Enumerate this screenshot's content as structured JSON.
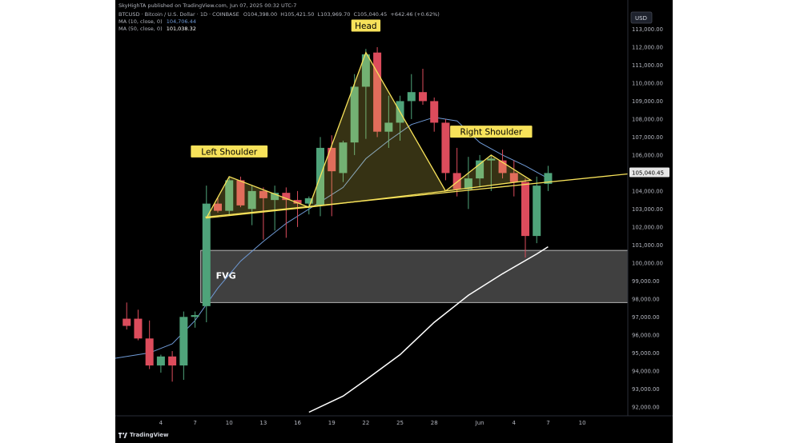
{
  "header": {
    "publisher": "SkyHighTA published on TradingView.com, Jun 07, 2025 00:32 UTC-7",
    "symbol": "BTCUSD · Bitcoin / U.S. Dollar · 1D · COINBASE",
    "ohlc": "O104,398.00  H105,421.50  L103,969.70  C105,040.45  +642.46 (+0.62%)",
    "ma10_label": "MA (10, close, 0)",
    "ma10_value": "104,706.44",
    "ma50_label": "MA (50, close, 0)",
    "ma50_value": "101,038.32"
  },
  "footer": {
    "brand": "TradingView"
  },
  "colors": {
    "up": "#4fa37a",
    "down": "#dc4c5c",
    "ma10": "#6f9ad6",
    "ma50": "#ffffff",
    "pattern": "#f7e25a",
    "label_bg": "#f7e25a",
    "fvg": "#555555"
  },
  "chart_data": {
    "type": "candlestick",
    "currency": "USD",
    "ylim": [
      91500,
      114000
    ],
    "y_ticks": [
      "92,000.00",
      "93,000.00",
      "94,000.00",
      "95,000.00",
      "96,000.00",
      "97,000.00",
      "98,000.00",
      "99,000.00",
      "100,000.00",
      "101,000.00",
      "102,000.00",
      "103,000.00",
      "104,000.00",
      "105,000.00",
      "106,000.00",
      "107,000.00",
      "108,000.00",
      "109,000.00",
      "110,000.00",
      "111,000.00",
      "112,000.00",
      "113,000.00"
    ],
    "x_ticks": [
      {
        "day": 4,
        "label": "4"
      },
      {
        "day": 7,
        "label": "7"
      },
      {
        "day": 10,
        "label": "10"
      },
      {
        "day": 13,
        "label": "13"
      },
      {
        "day": 16,
        "label": "16"
      },
      {
        "day": 19,
        "label": "19"
      },
      {
        "day": 22,
        "label": "22"
      },
      {
        "day": 25,
        "label": "25"
      },
      {
        "day": 28,
        "label": "28"
      },
      {
        "day": 32,
        "label": "Jun"
      },
      {
        "day": 35,
        "label": "4"
      },
      {
        "day": 38,
        "label": "7"
      },
      {
        "day": 41,
        "label": "10"
      }
    ],
    "candles": [
      {
        "d": 1,
        "o": 96900,
        "h": 97800,
        "l": 96300,
        "c": 96500
      },
      {
        "d": 2,
        "o": 96900,
        "h": 97400,
        "l": 95700,
        "c": 95800
      },
      {
        "d": 3,
        "o": 95800,
        "h": 96800,
        "l": 94100,
        "c": 94300
      },
      {
        "d": 4,
        "o": 94300,
        "h": 94900,
        "l": 93900,
        "c": 94800
      },
      {
        "d": 5,
        "o": 94800,
        "h": 95100,
        "l": 93400,
        "c": 94300
      },
      {
        "d": 6,
        "o": 94300,
        "h": 97300,
        "l": 93500,
        "c": 97000
      },
      {
        "d": 7,
        "o": 97000,
        "h": 97300,
        "l": 96400,
        "c": 97100
      },
      {
        "d": 8,
        "o": 97600,
        "h": 104300,
        "l": 96700,
        "c": 103300
      },
      {
        "d": 9,
        "o": 103300,
        "h": 103600,
        "l": 102800,
        "c": 102900
      },
      {
        "d": 10,
        "o": 102900,
        "h": 104800,
        "l": 102700,
        "c": 104600
      },
      {
        "d": 11,
        "o": 104600,
        "h": 104800,
        "l": 103100,
        "c": 103200
      },
      {
        "d": 12,
        "o": 103000,
        "h": 104300,
        "l": 102100,
        "c": 104000
      },
      {
        "d": 13,
        "o": 104000,
        "h": 104200,
        "l": 101300,
        "c": 103600
      },
      {
        "d": 14,
        "o": 103500,
        "h": 104300,
        "l": 101800,
        "c": 103900
      },
      {
        "d": 15,
        "o": 103900,
        "h": 104200,
        "l": 101400,
        "c": 103500
      },
      {
        "d": 16,
        "o": 103500,
        "h": 104000,
        "l": 102000,
        "c": 103300
      },
      {
        "d": 17,
        "o": 103300,
        "h": 103700,
        "l": 102700,
        "c": 103600
      },
      {
        "d": 18,
        "o": 103200,
        "h": 107000,
        "l": 102600,
        "c": 106400
      },
      {
        "d": 19,
        "o": 106400,
        "h": 107100,
        "l": 102600,
        "c": 105100
      },
      {
        "d": 20,
        "o": 105000,
        "h": 106800,
        "l": 104500,
        "c": 106700
      },
      {
        "d": 21,
        "o": 106700,
        "h": 110500,
        "l": 106000,
        "c": 109800
      },
      {
        "d": 22,
        "o": 109800,
        "h": 111900,
        "l": 106900,
        "c": 111600
      },
      {
        "d": 23,
        "o": 111700,
        "h": 112000,
        "l": 107000,
        "c": 107300
      },
      {
        "d": 24,
        "o": 107300,
        "h": 109300,
        "l": 106400,
        "c": 107800
      },
      {
        "d": 25,
        "o": 107800,
        "h": 109300,
        "l": 106800,
        "c": 109000
      },
      {
        "d": 26,
        "o": 109000,
        "h": 110500,
        "l": 108000,
        "c": 109500
      },
      {
        "d": 27,
        "o": 109500,
        "h": 110800,
        "l": 108800,
        "c": 109000
      },
      {
        "d": 28,
        "o": 109000,
        "h": 109200,
        "l": 107300,
        "c": 107800
      },
      {
        "d": 29,
        "o": 107800,
        "h": 108000,
        "l": 104600,
        "c": 105000
      },
      {
        "d": 30,
        "o": 105000,
        "h": 106400,
        "l": 103700,
        "c": 104100
      },
      {
        "d": 31,
        "o": 104100,
        "h": 105900,
        "l": 103000,
        "c": 104700
      },
      {
        "d": 32,
        "o": 104700,
        "h": 106000,
        "l": 104200,
        "c": 105700
      },
      {
        "d": 33,
        "o": 105700,
        "h": 106000,
        "l": 104000,
        "c": 105800
      },
      {
        "d": 34,
        "o": 105700,
        "h": 106300,
        "l": 104700,
        "c": 105000
      },
      {
        "d": 35,
        "o": 105000,
        "h": 105700,
        "l": 103700,
        "c": 104500
      },
      {
        "d": 36,
        "o": 104500,
        "h": 104700,
        "l": 100300,
        "c": 101500
      },
      {
        "d": 37,
        "o": 101500,
        "h": 104800,
        "l": 101100,
        "c": 104300
      },
      {
        "d": 38,
        "o": 104400,
        "h": 105400,
        "l": 104000,
        "c": 105000
      }
    ],
    "ma10": [
      [
        0,
        94700
      ],
      [
        3,
        95000
      ],
      [
        5,
        95500
      ],
      [
        7,
        96800
      ],
      [
        9,
        98600
      ],
      [
        11,
        100100
      ],
      [
        13,
        101200
      ],
      [
        15,
        102200
      ],
      [
        17,
        103000
      ],
      [
        18,
        103400
      ],
      [
        20,
        104200
      ],
      [
        22,
        105800
      ],
      [
        24,
        106800
      ],
      [
        26,
        107700
      ],
      [
        28,
        108100
      ],
      [
        30,
        107900
      ],
      [
        32,
        106700
      ],
      [
        34,
        106000
      ],
      [
        36,
        105400
      ],
      [
        38,
        104700
      ]
    ],
    "ma50": [
      [
        17,
        91700
      ],
      [
        20,
        92600
      ],
      [
        22,
        93500
      ],
      [
        25,
        94900
      ],
      [
        28,
        96700
      ],
      [
        31,
        98200
      ],
      [
        34,
        99400
      ],
      [
        37,
        100500
      ],
      [
        38,
        100900
      ]
    ],
    "fvg": {
      "from_day": 7.5,
      "to_day": 45,
      "low": 97800,
      "high": 100700,
      "label": "FVG"
    },
    "neckline": [
      [
        7.9,
        102550
      ],
      [
        45,
        104950
      ]
    ],
    "pattern_lines": [
      {
        "name": "left-shoulder",
        "points": [
          [
            8,
            102500
          ],
          [
            10,
            104800
          ],
          [
            17,
            103100
          ]
        ]
      },
      {
        "name": "head",
        "points": [
          [
            17,
            103100
          ],
          [
            22,
            111700
          ],
          [
            29,
            104000
          ]
        ]
      },
      {
        "name": "right-shoulder",
        "points": [
          [
            29,
            104000
          ],
          [
            33,
            106000
          ],
          [
            36.5,
            104600
          ]
        ]
      }
    ],
    "annotations": [
      {
        "text": "Left Shoulder",
        "day": 10,
        "price": 106200
      },
      {
        "text": "Head",
        "day": 22,
        "price": 113200
      },
      {
        "text": "Right Shoulder",
        "day": 33,
        "price": 107300
      }
    ],
    "price_tag": "105,040.45",
    "axis_unit_label": "USD"
  }
}
